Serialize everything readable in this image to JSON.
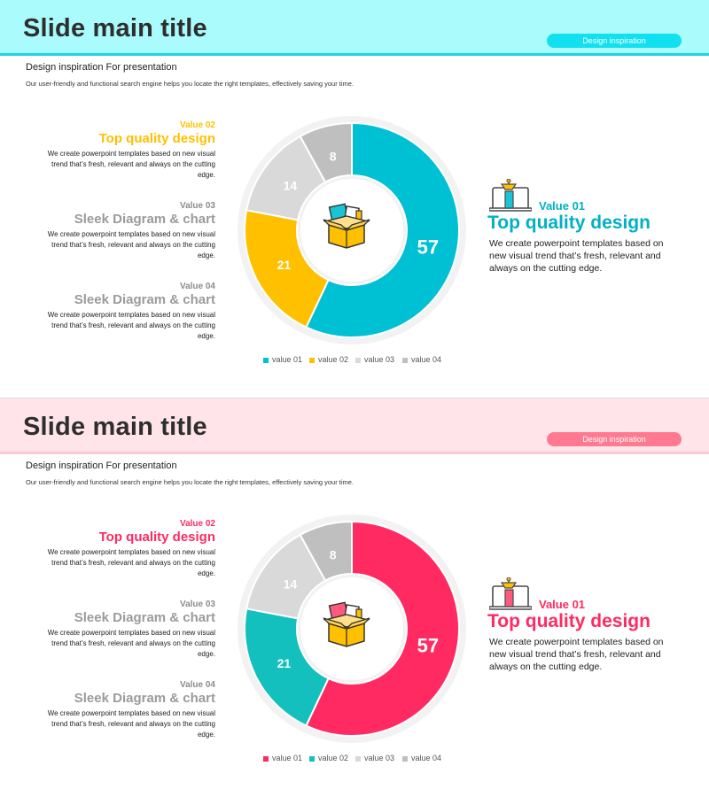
{
  "slides": [
    {
      "title": "Slide main title",
      "pill": "Design inspiration",
      "subtitle": "Design inspiration For presentation",
      "description": "Our user-friendly and functional search engine helps you locate the right templates, effectively saving your time.",
      "colors": {
        "header_bg": "#a9fbfc",
        "header_line": "#1fd3e0",
        "pill": "#11e0ef",
        "primary": "#00c0d4",
        "secondary": "#ffc000",
        "tertiary": "#d9d9d9",
        "quaternary": "#bfbfbf",
        "accent_text": "#ffc000",
        "value01_text": "#00b0c6",
        "icon_primary": "#19c4d4",
        "icon_secondary": "#ffc000"
      },
      "left_blocks": [
        {
          "value": "Value 02",
          "heading": "Top quality design",
          "body": "We create powerpoint templates based on new visual trend that’s fresh, relevant and always on the cutting edge."
        },
        {
          "value": "Value 03",
          "heading": "Sleek Diagram & chart",
          "body": "We create powerpoint templates based on new visual trend that’s fresh, relevant and always on the cutting edge."
        },
        {
          "value": "Value 04",
          "heading": "Sleek Diagram & chart",
          "body": "We create powerpoint templates based on new visual trend that’s fresh, relevant and always on the cutting edge."
        }
      ],
      "right_block": {
        "value": "Value 01",
        "heading": "Top quality design",
        "body": "We create powerpoint templates based on new visual trend that’s fresh, relevant and always on the cutting edge.",
        "icon": "laptop-pencil-icon"
      },
      "center_icon": "open-box-icon",
      "chart_data": {
        "type": "pie",
        "variant": "donut",
        "categories": [
          "value 01",
          "value 02",
          "value 03",
          "value 04"
        ],
        "values": [
          57,
          21,
          14,
          8
        ],
        "data_labels": [
          "57",
          "21",
          "14",
          "8"
        ],
        "colors": [
          "#00c0d4",
          "#ffc000",
          "#d9d9d9",
          "#bfbfbf"
        ],
        "legend_position": "bottom"
      }
    },
    {
      "title": "Slide main title",
      "pill": "Design inspiration",
      "subtitle": "Design inspiration For presentation",
      "description": "Our user-friendly and functional search engine helps you locate the right templates, effectively saving your time.",
      "colors": {
        "header_bg": "#ffe4ea",
        "header_line": "#ffc9d4",
        "pill": "#ff7a90",
        "primary": "#ff2a61",
        "secondary": "#14c0bd",
        "tertiary": "#d9d9d9",
        "quaternary": "#bfbfbf",
        "accent_text": "#ff2a61",
        "value01_text": "#ff2a61",
        "icon_primary": "#ff5a7e",
        "icon_secondary": "#ffc000"
      },
      "left_blocks": [
        {
          "value": "Value 02",
          "heading": "Top quality design",
          "body": "We create powerpoint templates based on new visual trend that’s fresh, relevant and always on the cutting edge."
        },
        {
          "value": "Value 03",
          "heading": "Sleek Diagram & chart",
          "body": "We create powerpoint templates based on new visual trend that’s fresh, relevant and always on the cutting edge."
        },
        {
          "value": "Value 04",
          "heading": "Sleek Diagram & chart",
          "body": "We create powerpoint templates based on new visual trend that’s fresh, relevant and always on the cutting edge."
        }
      ],
      "right_block": {
        "value": "Value 01",
        "heading": "Top quality design",
        "body": "We create powerpoint templates based on new visual trend that’s fresh, relevant and always on the cutting edge.",
        "icon": "laptop-pencil-icon"
      },
      "center_icon": "open-box-icon",
      "chart_data": {
        "type": "pie",
        "variant": "donut",
        "categories": [
          "value 01",
          "value 02",
          "value 03",
          "value 04"
        ],
        "values": [
          57,
          21,
          14,
          8
        ],
        "data_labels": [
          "57",
          "21",
          "14",
          "8"
        ],
        "colors": [
          "#ff2a61",
          "#14c0bd",
          "#d9d9d9",
          "#bfbfbf"
        ],
        "legend_position": "bottom"
      }
    }
  ]
}
